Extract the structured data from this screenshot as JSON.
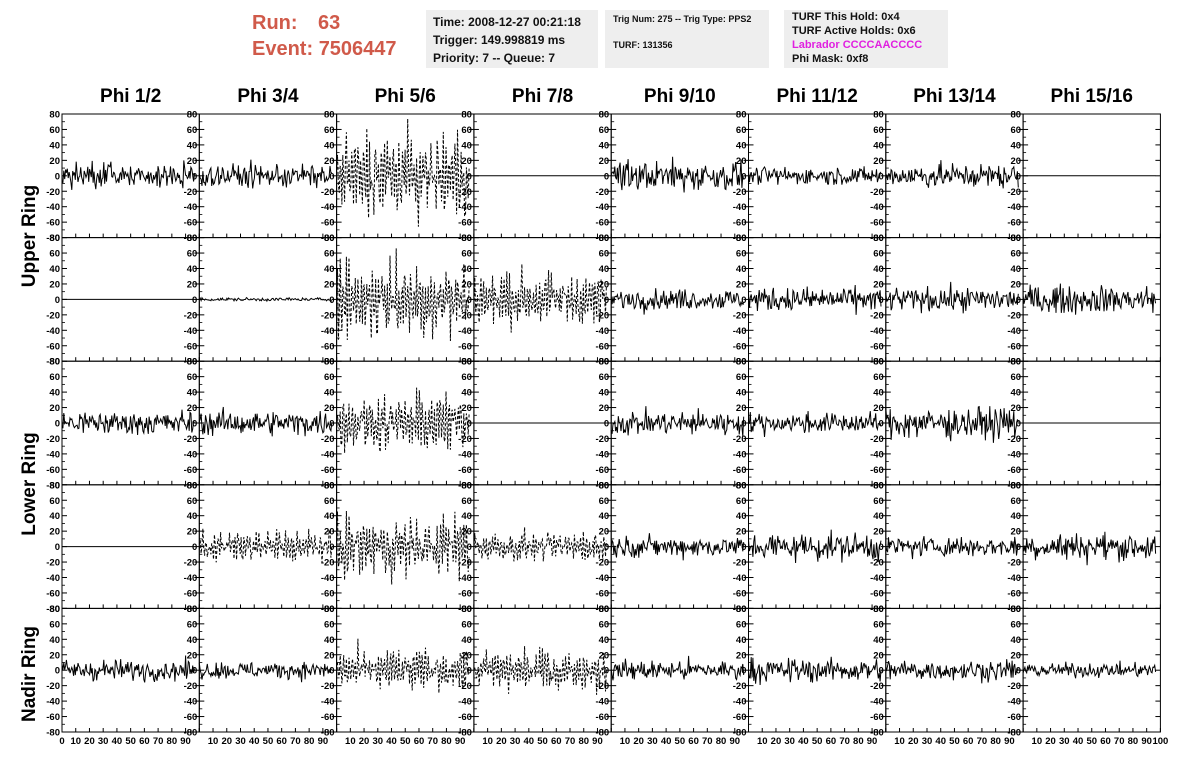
{
  "header": {
    "run_label": "Run:",
    "run_value": "63",
    "event_label": "Event:",
    "event_value": "7506447"
  },
  "info_box_1": {
    "time": "Time: 2008-12-27 00:21:18",
    "trigger": "Trigger: 149.998819 ms",
    "priority": "Priority: 7 -- Queue: 7"
  },
  "info_box_2": {
    "trig": "Trig Num: 275 -- Trig Type: PPS2",
    "turf": "TURF: 131356"
  },
  "info_box_3": {
    "this_hold": "TURF This Hold: 0x4",
    "active_holds": "TURF Active Holds: 0x6",
    "labrador": "Labrador CCCCAACCCC",
    "labrador_color": "#e020e0",
    "phi_mask": "Phi Mask: 0xf8"
  },
  "column_titles": [
    "Phi 1/2",
    "Phi 3/4",
    "Phi 5/6",
    "Phi 7/8",
    "Phi 9/10",
    "Phi 11/12",
    "Phi 13/14",
    "Phi 15/16"
  ],
  "ring_labels": [
    "Upper Ring",
    "Lower Ring",
    "Nadir Ring"
  ],
  "chart_data": {
    "type": "line",
    "title": "",
    "xlabel": "",
    "ylabel": "",
    "xlim": [
      0,
      100
    ],
    "ylim": [
      -80,
      80
    ],
    "y_ticks": [
      80,
      60,
      40,
      20,
      0,
      -20,
      -40,
      -60,
      -80
    ],
    "x_ticks": [
      0,
      10,
      20,
      30,
      40,
      50,
      60,
      70,
      80,
      90,
      100
    ],
    "x_tick_labels": [
      "0",
      "10",
      "20",
      "30",
      "40",
      "50",
      "60",
      "70",
      "80",
      "90",
      "100"
    ],
    "grid": false,
    "rows": 5,
    "cols": 8,
    "panels": [
      [
        "noise:14",
        "noise:14",
        "dashed:32",
        "flat",
        "noise:18",
        "noise:10",
        "noise:14",
        "flat"
      ],
      [
        "flat",
        "low:2",
        "dashed:32",
        "dashed:20",
        "noise:12",
        "noise:14",
        "noise:14",
        "noise:16"
      ],
      [
        "noise:14",
        "noise:14",
        "dashed:22",
        "flat",
        "noise:14",
        "noise:12",
        "noise:18",
        "flat"
      ],
      [
        "flat",
        "dashed:12",
        "dashed:24",
        "dashed:12",
        "noise:12",
        "noise:16",
        "noise:12",
        "noise:16"
      ],
      [
        "noise:12",
        "noise:10",
        "dashed:16",
        "dashed:16",
        "noise:12",
        "noise:14",
        "noise:12",
        "noise:8"
      ]
    ]
  }
}
